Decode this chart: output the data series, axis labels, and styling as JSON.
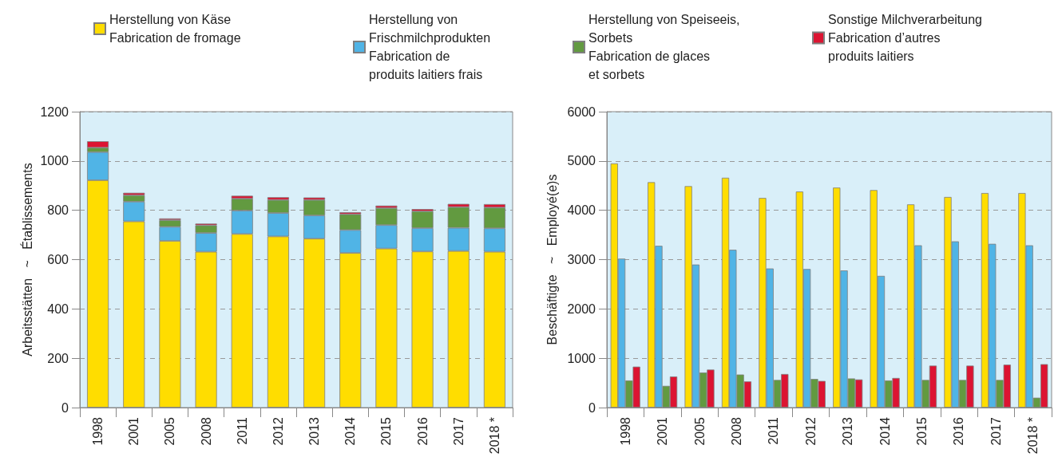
{
  "chart_data": [
    {
      "type": "bar",
      "stacked": true,
      "ylabel": "Arbeitsstätten   ~   Établissements",
      "categories": [
        "1998",
        "2001",
        "2005",
        "2008",
        "2011",
        "2012",
        "2013",
        "2014",
        "2015",
        "2016",
        "2017",
        "2018 *"
      ],
      "ylim": [
        0,
        1200
      ],
      "yticks": [
        0,
        200,
        400,
        600,
        800,
        1000,
        1200
      ],
      "grid": "y",
      "legend": "top",
      "series": [
        {
          "name": "Herstellung von Käse\nFabrication de fromage",
          "color": "#ffdd00",
          "values": [
            922,
            755,
            676,
            632,
            704,
            694,
            685,
            627,
            645,
            633,
            635,
            632
          ]
        },
        {
          "name": "Herstellung von\nFrischmilchprodukten\nFabrication de\nproduits laitiers frais",
          "color": "#50b4e6",
          "values": [
            114,
            80,
            57,
            76,
            95,
            95,
            94,
            93,
            95,
            95,
            94,
            95
          ]
        },
        {
          "name": "Herstellung von Speiseeis,\nSorbets\nFabrication de glaces\net sorbets",
          "color": "#629a40",
          "values": [
            18,
            26,
            27,
            31,
            48,
            53,
            63,
            64,
            69,
            68,
            84,
            84
          ]
        },
        {
          "name": "Sonstige Milchverarbeitung\nFabrication d’autres\nproduits laitiers",
          "color": "#dc1432",
          "values": [
            26,
            10,
            7,
            7,
            12,
            11,
            10,
            8,
            10,
            9,
            13,
            14
          ]
        }
      ]
    },
    {
      "type": "bar",
      "ylabel": "Beschäftigte   ~   Employé(e)s",
      "categories": [
        "1998",
        "2001",
        "2005",
        "2008",
        "2011",
        "2012",
        "2013",
        "2014",
        "2015",
        "2016",
        "2017",
        "2018 *"
      ],
      "ylim": [
        0,
        6000
      ],
      "yticks": [
        0,
        1000,
        2000,
        3000,
        4000,
        5000,
        6000
      ],
      "grid": "y",
      "series": [
        {
          "color": "#ffdd00",
          "values": [
            4950,
            4570,
            4490,
            4660,
            4250,
            4380,
            4460,
            4410,
            4120,
            4270,
            4350,
            4350
          ]
        },
        {
          "color": "#50b4e6",
          "values": [
            3020,
            3280,
            2900,
            3200,
            2820,
            2810,
            2780,
            2670,
            3290,
            3370,
            3320,
            3290
          ]
        },
        {
          "color": "#629a40",
          "values": [
            550,
            440,
            710,
            670,
            560,
            580,
            590,
            550,
            560,
            560,
            560,
            200
          ]
        },
        {
          "color": "#dc1432",
          "values": [
            830,
            630,
            770,
            530,
            680,
            540,
            570,
            600,
            850,
            850,
            870,
            880
          ]
        }
      ]
    }
  ]
}
